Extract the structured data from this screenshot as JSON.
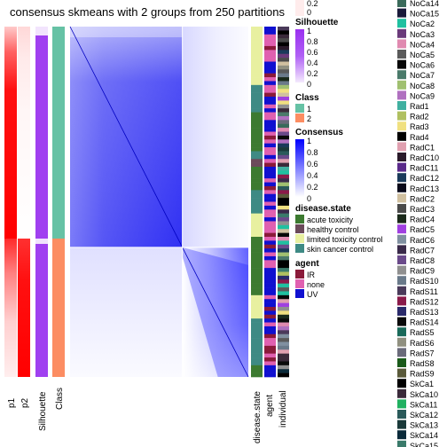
{
  "chart_data": {
    "type": "heatmap",
    "title": "consensus skmeans with 2 groups from 250 partitions",
    "row_annotations": [
      "p1",
      "p2",
      "Silhouette",
      "Class"
    ],
    "col_annotations": [
      "disease.state",
      "agent",
      "individual"
    ],
    "groups": [
      {
        "class": "1",
        "fraction": 0.63
      },
      {
        "class": "2",
        "fraction": 0.37
      }
    ],
    "legends": {
      "p2_ticks": [
        "0.2",
        "0"
      ],
      "silhouette": {
        "title": "Silhouette",
        "ticks": [
          "1",
          "0.8",
          "0.6",
          "0.4",
          "0.2",
          "0"
        ]
      },
      "class": {
        "title": "Class",
        "items": [
          {
            "label": "1",
            "color": "#66C2A5"
          },
          {
            "label": "2",
            "color": "#FC8D62"
          }
        ]
      },
      "consensus": {
        "title": "Consensus",
        "ticks": [
          "1",
          "0.8",
          "0.6",
          "0.4",
          "0.2",
          "0"
        ]
      },
      "disease_state": {
        "title": "disease.state",
        "items": [
          {
            "label": "acute toxicity",
            "color": "#3C7A30"
          },
          {
            "label": "healthy control",
            "color": "#6B4A5A"
          },
          {
            "label": "limited toxicity control",
            "color": "#E8F0A0"
          },
          {
            "label": "skin cancer control",
            "color": "#3E8A84"
          }
        ]
      },
      "agent": {
        "title": "agent",
        "items": [
          {
            "label": "IR",
            "color": "#8B1A3A"
          },
          {
            "label": "none",
            "color": "#E060B0"
          },
          {
            "label": "UV",
            "color": "#1010D0"
          }
        ]
      },
      "individual": {
        "items": [
          {
            "label": "NoCa14",
            "color": "#3A6A5A"
          },
          {
            "label": "NoCa15",
            "color": "#1A1A3A"
          },
          {
            "label": "NoCa2",
            "color": "#20C0A0"
          },
          {
            "label": "NoCa3",
            "color": "#6A3A7A"
          },
          {
            "label": "NoCa4",
            "color": "#E08AB0"
          },
          {
            "label": "NoCa5",
            "color": "#5A5A5A"
          },
          {
            "label": "NoCa6",
            "color": "#080808"
          },
          {
            "label": "NoCa7",
            "color": "#4A7A6A"
          },
          {
            "label": "NoCa8",
            "color": "#A0C070"
          },
          {
            "label": "NoCa9",
            "color": "#B070C0"
          },
          {
            "label": "Rad1",
            "color": "#40B0A0"
          },
          {
            "label": "Rad2",
            "color": "#B0C060"
          },
          {
            "label": "Rad3",
            "color": "#F0E080"
          },
          {
            "label": "Rad4",
            "color": "#000000"
          },
          {
            "label": "RadC1",
            "color": "#E0A0B0"
          },
          {
            "label": "RadC10",
            "color": "#2A1A2A"
          },
          {
            "label": "RadC11",
            "color": "#5A2A8A"
          },
          {
            "label": "RadC12",
            "color": "#1A3A5A"
          },
          {
            "label": "RadC13",
            "color": "#0A0A1A"
          },
          {
            "label": "RadC2",
            "color": "#D0C0A0"
          },
          {
            "label": "RadC3",
            "color": "#4A4A4A"
          },
          {
            "label": "RadC4",
            "color": "#1A2A1A"
          },
          {
            "label": "RadC5",
            "color": "#A040E0"
          },
          {
            "label": "RadC6",
            "color": "#8090A0"
          },
          {
            "label": "RadC7",
            "color": "#3A2A4A"
          },
          {
            "label": "RadC8",
            "color": "#6A4A8A"
          },
          {
            "label": "RadC9",
            "color": "#909090"
          },
          {
            "label": "RadS10",
            "color": "#6A7A8A"
          },
          {
            "label": "RadS11",
            "color": "#4A3A5A"
          },
          {
            "label": "RadS12",
            "color": "#8A1A4A"
          },
          {
            "label": "RadS13",
            "color": "#2A2A6A"
          },
          {
            "label": "RadS14",
            "color": "#0A0A0A"
          },
          {
            "label": "RadS5",
            "color": "#1A6A5A"
          },
          {
            "label": "RadS6",
            "color": "#909080"
          },
          {
            "label": "RadS7",
            "color": "#6A6A7A"
          },
          {
            "label": "RadS8",
            "color": "#1A5A1A"
          },
          {
            "label": "RadS9",
            "color": "#5A5A3A"
          },
          {
            "label": "SkCa1",
            "color": "#000000"
          },
          {
            "label": "SkCa10",
            "color": "#3A2A3A"
          },
          {
            "label": "SkCa11",
            "color": "#20B060"
          },
          {
            "label": "SkCa12",
            "color": "#2A5A5A"
          },
          {
            "label": "SkCa13",
            "color": "#1A3A3A"
          },
          {
            "label": "SkCa14",
            "color": "#0A2A3A"
          },
          {
            "label": "SkCa15",
            "color": "#3A7A6A"
          }
        ]
      }
    }
  }
}
